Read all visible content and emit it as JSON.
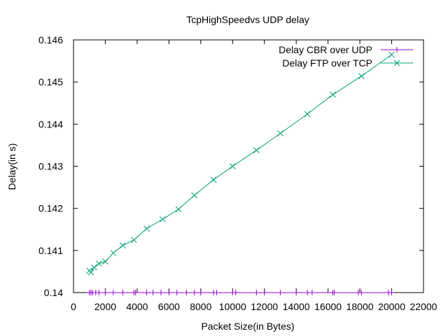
{
  "chart_data": {
    "type": "line",
    "title": "TcpHighSpeedvs UDP delay",
    "xlabel": "Packet Size(in Bytes)",
    "ylabel": "Delay(in s)",
    "xlim": [
      0,
      22000
    ],
    "ylim": [
      0.14,
      0.146
    ],
    "x_ticks": [
      0,
      2000,
      4000,
      6000,
      8000,
      10000,
      12000,
      14000,
      16000,
      18000,
      20000,
      22000
    ],
    "x_tick_labels": [
      "0",
      "2000",
      "4000",
      "6000",
      "8000",
      "10000",
      "12000",
      "14000",
      "16000",
      "18000",
      "20000",
      "22000"
    ],
    "y_ticks": [
      0.14,
      0.141,
      0.142,
      0.143,
      0.144,
      0.145,
      0.146
    ],
    "y_tick_labels": [
      "0.14",
      "0.141",
      "0.142",
      "0.143",
      "0.144",
      "0.145",
      "0.146"
    ],
    "grid": false,
    "legend_position": "top-right",
    "series": [
      {
        "name": "Delay CBR over UDP",
        "color": "#9400d3",
        "marker": "plus",
        "x": [
          1000,
          1100,
          1200,
          1400,
          1600,
          2000,
          2500,
          3100,
          3800,
          3900,
          4600,
          5000,
          5500,
          6000,
          6500,
          7100,
          7600,
          8000,
          8800,
          9000,
          10000,
          10200,
          11500,
          12000,
          13000,
          14000,
          14700,
          15000,
          16300,
          16400,
          17900,
          18100,
          19800,
          20000
        ],
        "y": [
          0.14,
          0.14,
          0.14,
          0.14,
          0.14,
          0.14,
          0.14,
          0.14,
          0.14,
          0.14,
          0.14,
          0.14,
          0.14,
          0.14,
          0.14,
          0.14,
          0.14,
          0.14,
          0.14,
          0.14,
          0.14,
          0.14,
          0.14,
          0.14,
          0.14,
          0.14,
          0.14,
          0.14,
          0.14,
          0.14,
          0.14,
          0.14,
          0.14,
          0.14
        ]
      },
      {
        "name": "Delay FTP over TCP",
        "color": "#009e73",
        "marker": "cross",
        "x": [
          1000,
          1100,
          1300,
          1600,
          2000,
          2500,
          3100,
          3800,
          4600,
          5600,
          6600,
          7600,
          8800,
          10000,
          11500,
          13000,
          14700,
          16300,
          18100,
          20000
        ],
        "y": [
          0.14052,
          0.14048,
          0.1406,
          0.14069,
          0.14074,
          0.14094,
          0.14112,
          0.14125,
          0.14152,
          0.14174,
          0.14198,
          0.14231,
          0.14268,
          0.143,
          0.14338,
          0.14378,
          0.14424,
          0.1447,
          0.14514,
          0.14565
        ]
      }
    ]
  }
}
